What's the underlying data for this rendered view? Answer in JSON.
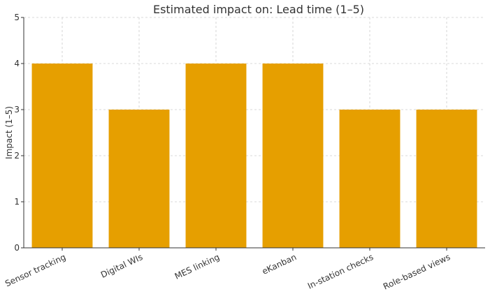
{
  "chart_data": {
    "type": "bar",
    "title": "Estimated impact on: Lead time (1–5)",
    "xlabel": "",
    "ylabel": "Impact (1–5)",
    "categories": [
      "Sensor tracking",
      "Digital WIs",
      "MES linking",
      "eKanban",
      "In-station checks",
      "Role-based views"
    ],
    "values": [
      4,
      3,
      4,
      4,
      3,
      3
    ],
    "ylim": [
      0,
      5
    ],
    "yticks": [
      "0",
      "1",
      "2",
      "3",
      "4",
      "5"
    ],
    "grid": true,
    "bar_color": "#E69F00"
  }
}
